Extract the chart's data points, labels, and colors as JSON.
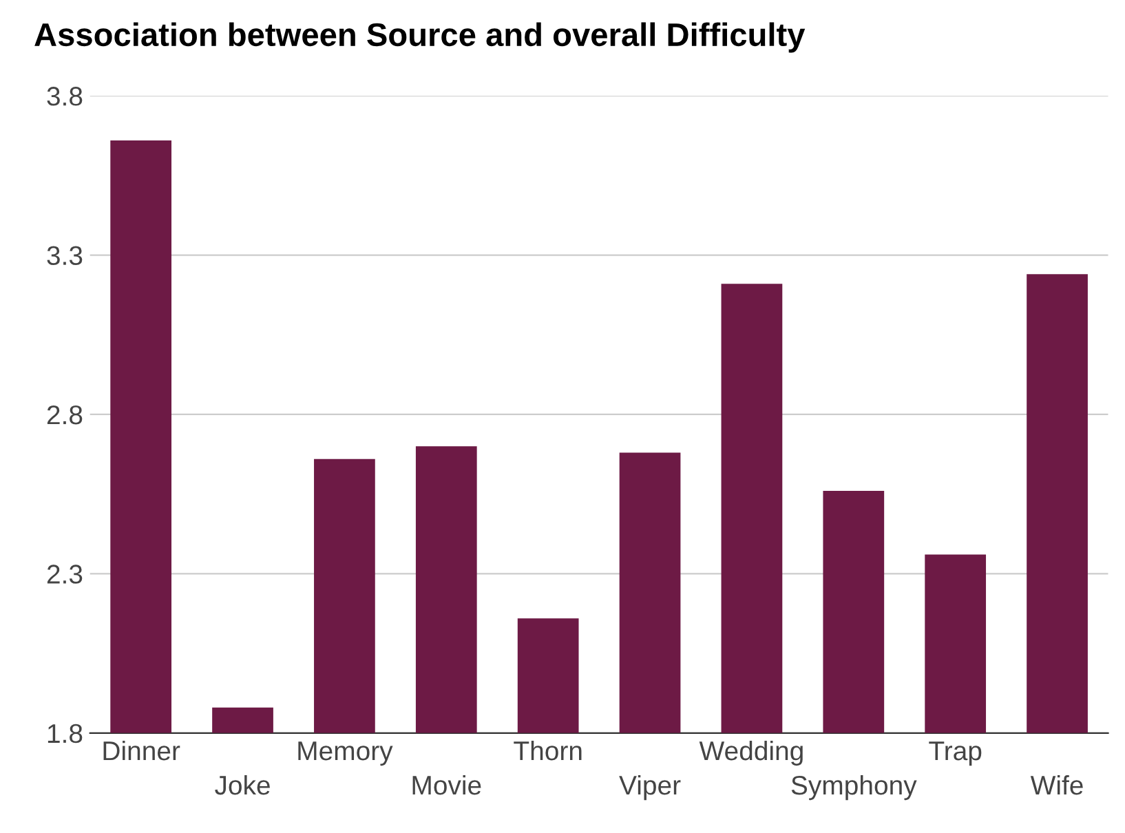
{
  "chart_data": {
    "type": "bar",
    "title": "Association between Source and overall Difficulty",
    "categories": [
      "Dinner",
      "Joke",
      "Memory",
      "Movie",
      "Thorn",
      "Viper",
      "Wedding",
      "Symphony",
      "Trap",
      "Wife"
    ],
    "values": [
      3.66,
      1.88,
      2.66,
      2.7,
      2.16,
      2.68,
      3.21,
      2.56,
      2.36,
      3.24
    ],
    "color": "#6d1a45",
    "ylim": [
      1.8,
      3.8
    ],
    "yticks": [
      1.8,
      2.3,
      2.8,
      3.3,
      3.8
    ],
    "grid": "y",
    "legend": false
  }
}
